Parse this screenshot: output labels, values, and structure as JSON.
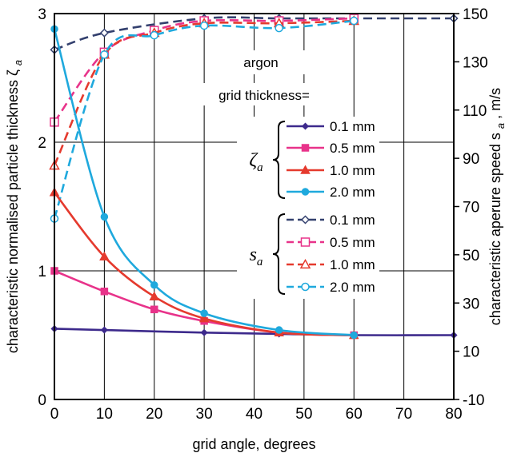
{
  "chart_data": {
    "type": "line",
    "x": [
      0,
      10,
      20,
      30,
      45,
      60
    ],
    "xlabel": "grid angle, degrees",
    "ylabel": "characteristic normalised particle thickness ζ",
    "ylabel_sub": "a",
    "y2label": "characteristic aperure speed s",
    "y2label_sub": "a",
    "y2label_unit": ", m/s",
    "xlim": [
      0,
      80
    ],
    "ylim": [
      0,
      3
    ],
    "y2lim": [
      -10,
      150
    ],
    "xticks": [
      "0",
      "10",
      "20",
      "30",
      "40",
      "50",
      "60",
      "70",
      "80"
    ],
    "yticks": [
      "0",
      "1",
      "2",
      "3"
    ],
    "y2ticks": [
      "-10",
      "10",
      "30",
      "50",
      "70",
      "90",
      "110",
      "130",
      "150"
    ],
    "grid": true,
    "legend": {
      "gas": "argon",
      "heading": "grid thickness=",
      "zeta_symbol": "ζ",
      "zeta_sub": "a",
      "speed_symbol": "s",
      "speed_sub": "a",
      "labels": [
        "0.1 mm",
        "0.5 mm",
        "1.0 mm",
        "2.0 mm"
      ]
    },
    "series": [
      {
        "group": "zeta",
        "label": "0.1 mm",
        "axis": "left",
        "color": "#3d2a8c",
        "dash": false,
        "marker": "diamond",
        "filled": true,
        "x": [
          0,
          10,
          30,
          45,
          60,
          80
        ],
        "values": [
          0.55,
          0.54,
          0.52,
          0.51,
          0.5,
          0.5
        ]
      },
      {
        "group": "zeta",
        "label": "0.5 mm",
        "axis": "left",
        "color": "#e8338a",
        "dash": false,
        "marker": "square",
        "filled": true,
        "x": [
          0,
          10,
          20,
          30,
          45,
          60
        ],
        "values": [
          1.0,
          0.84,
          0.7,
          0.61,
          0.52,
          0.5
        ]
      },
      {
        "group": "zeta",
        "label": "1.0 mm",
        "axis": "left",
        "color": "#e53a2e",
        "dash": false,
        "marker": "triangle",
        "filled": true,
        "x": [
          0,
          10,
          20,
          30,
          45,
          60
        ],
        "values": [
          1.61,
          1.11,
          0.8,
          0.63,
          0.52,
          0.5
        ]
      },
      {
        "group": "zeta",
        "label": "2.0 mm",
        "axis": "left",
        "color": "#1fa9dd",
        "dash": false,
        "marker": "circle",
        "filled": true,
        "x": [
          0,
          10,
          20,
          30,
          45,
          60
        ],
        "values": [
          2.88,
          1.42,
          0.89,
          0.67,
          0.54,
          0.5
        ]
      },
      {
        "group": "speed",
        "label": "0.1 mm",
        "axis": "right",
        "color": "#33406e",
        "dash": true,
        "marker": "diamond",
        "filled": false,
        "x": [
          0,
          10,
          30,
          45,
          60,
          80
        ],
        "values": [
          135,
          142,
          148,
          148,
          148,
          148
        ]
      },
      {
        "group": "speed",
        "label": "0.5 mm",
        "axis": "right",
        "color": "#e8338a",
        "dash": true,
        "marker": "square",
        "filled": false,
        "x": [
          0,
          10,
          20,
          30,
          45,
          60
        ],
        "values": [
          105,
          134,
          143,
          147,
          147,
          148
        ]
      },
      {
        "group": "speed",
        "label": "1.0 mm",
        "axis": "right",
        "color": "#e53a2e",
        "dash": true,
        "marker": "triangle",
        "filled": false,
        "x": [
          0,
          10,
          20,
          30,
          45,
          60
        ],
        "values": [
          87,
          133,
          142,
          146,
          146,
          147
        ]
      },
      {
        "group": "speed",
        "label": "2.0 mm",
        "axis": "right",
        "color": "#1fa9dd",
        "dash": true,
        "marker": "circle",
        "filled": false,
        "x": [
          0,
          10,
          20,
          30,
          45,
          60
        ],
        "values": [
          65,
          133,
          141,
          145,
          144,
          147
        ]
      }
    ]
  }
}
